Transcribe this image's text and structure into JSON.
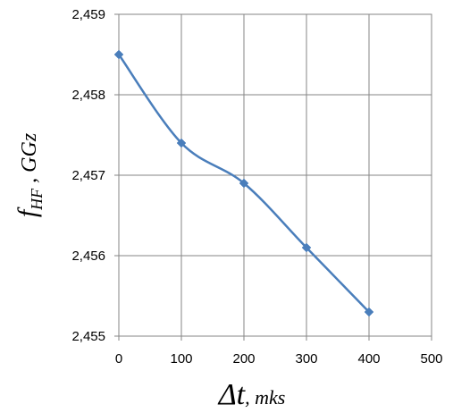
{
  "chart_data": {
    "type": "line",
    "xlabel_main": "Δt",
    "xlabel_unit": ", mks",
    "ylabel_main": "f",
    "ylabel_sub": "HF",
    "ylabel_unit": " ,  GGz",
    "xlim": [
      0,
      500
    ],
    "ylim": [
      2.455,
      2.459
    ],
    "x_ticks": [
      0,
      100,
      200,
      300,
      400,
      500
    ],
    "x_tick_labels": [
      "0",
      "100",
      "200",
      "300",
      "400",
      "500"
    ],
    "y_ticks": [
      2.455,
      2.456,
      2.457,
      2.458,
      2.459
    ],
    "y_tick_labels": [
      "2,455",
      "2,456",
      "2,457",
      "2,458",
      "2,459"
    ],
    "grid": true,
    "marker": "diamond",
    "line_style": "smooth",
    "series": [
      {
        "x": [
          0,
          100,
          200,
          300,
          400
        ],
        "y": [
          2.4585,
          2.4574,
          2.4569,
          2.4561,
          2.4553
        ],
        "color": "#4a7ebb"
      }
    ]
  }
}
